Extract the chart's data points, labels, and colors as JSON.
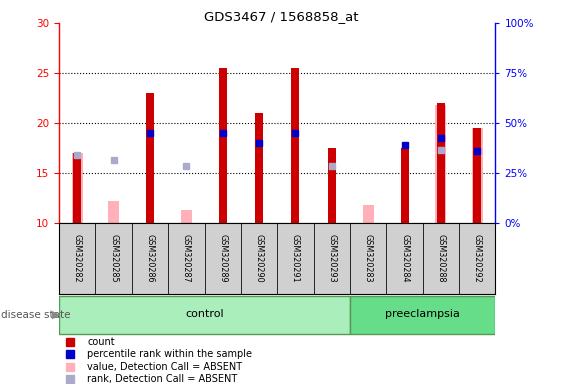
{
  "title": "GDS3467 / 1568858_at",
  "samples": [
    "GSM320282",
    "GSM320285",
    "GSM320286",
    "GSM320287",
    "GSM320289",
    "GSM320290",
    "GSM320291",
    "GSM320293",
    "GSM320283",
    "GSM320284",
    "GSM320288",
    "GSM320292"
  ],
  "n_control": 8,
  "count": [
    17.0,
    0,
    23.0,
    0,
    25.5,
    21.0,
    25.5,
    17.5,
    0,
    17.5,
    22.0,
    19.5
  ],
  "percentile_rank": [
    null,
    null,
    19.0,
    null,
    19.0,
    18.0,
    19.0,
    null,
    null,
    17.8,
    18.5,
    17.2
  ],
  "absent_value": [
    17.0,
    12.2,
    null,
    11.3,
    null,
    null,
    null,
    null,
    11.8,
    null,
    21.8,
    19.5
  ],
  "absent_rank": [
    16.8,
    16.3,
    null,
    15.7,
    null,
    null,
    null,
    15.7,
    null,
    null,
    17.3,
    null
  ],
  "ylim_left": [
    10,
    30
  ],
  "ylim_right": [
    0,
    100
  ],
  "y_ticks_left": [
    10,
    15,
    20,
    25,
    30
  ],
  "y_ticks_right": [
    0,
    25,
    50,
    75,
    100
  ],
  "y_tick_labels_right": [
    "0%",
    "25%",
    "50%",
    "75%",
    "100%"
  ],
  "red_color": "#CC0000",
  "blue_color": "#0000CC",
  "pink_color": "#FFB0B8",
  "lightblue_color": "#AAAACC",
  "control_color": "#AAEEBB",
  "preeclampsia_color": "#66DD88",
  "control_label": "control",
  "preeclampsia_label": "preeclampsia",
  "legend_items": [
    "count",
    "percentile rank within the sample",
    "value, Detection Call = ABSENT",
    "rank, Detection Call = ABSENT"
  ]
}
